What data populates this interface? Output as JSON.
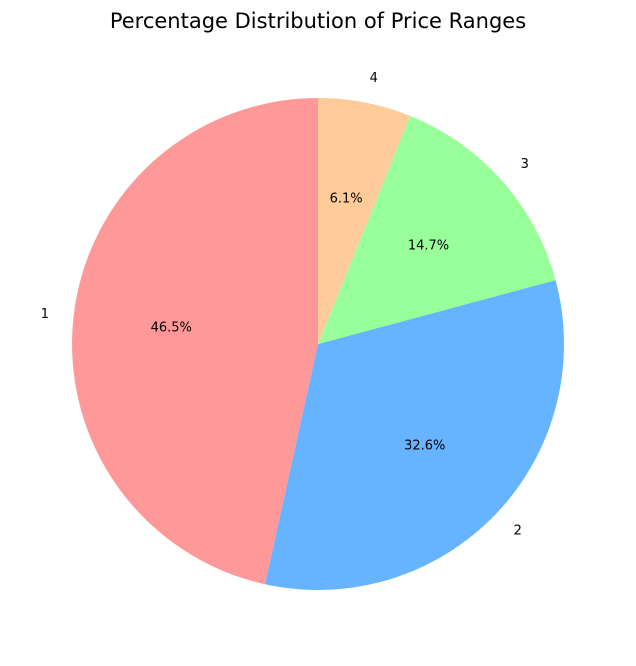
{
  "chart_data": {
    "type": "pie",
    "title": "Percentage Distribution of Price Ranges",
    "start_angle_deg": 90,
    "direction": "counterclockwise",
    "slices": [
      {
        "label": "1",
        "value": 46.5,
        "pct_label": "46.5%",
        "color": "#ff9999"
      },
      {
        "label": "2",
        "value": 32.6,
        "pct_label": "32.6%",
        "color": "#66b3ff"
      },
      {
        "label": "3",
        "value": 14.7,
        "pct_label": "14.7%",
        "color": "#99ff99"
      },
      {
        "label": "4",
        "value": 6.1,
        "pct_label": "6.1%",
        "color": "#ffcc99"
      }
    ],
    "legend": false
  }
}
